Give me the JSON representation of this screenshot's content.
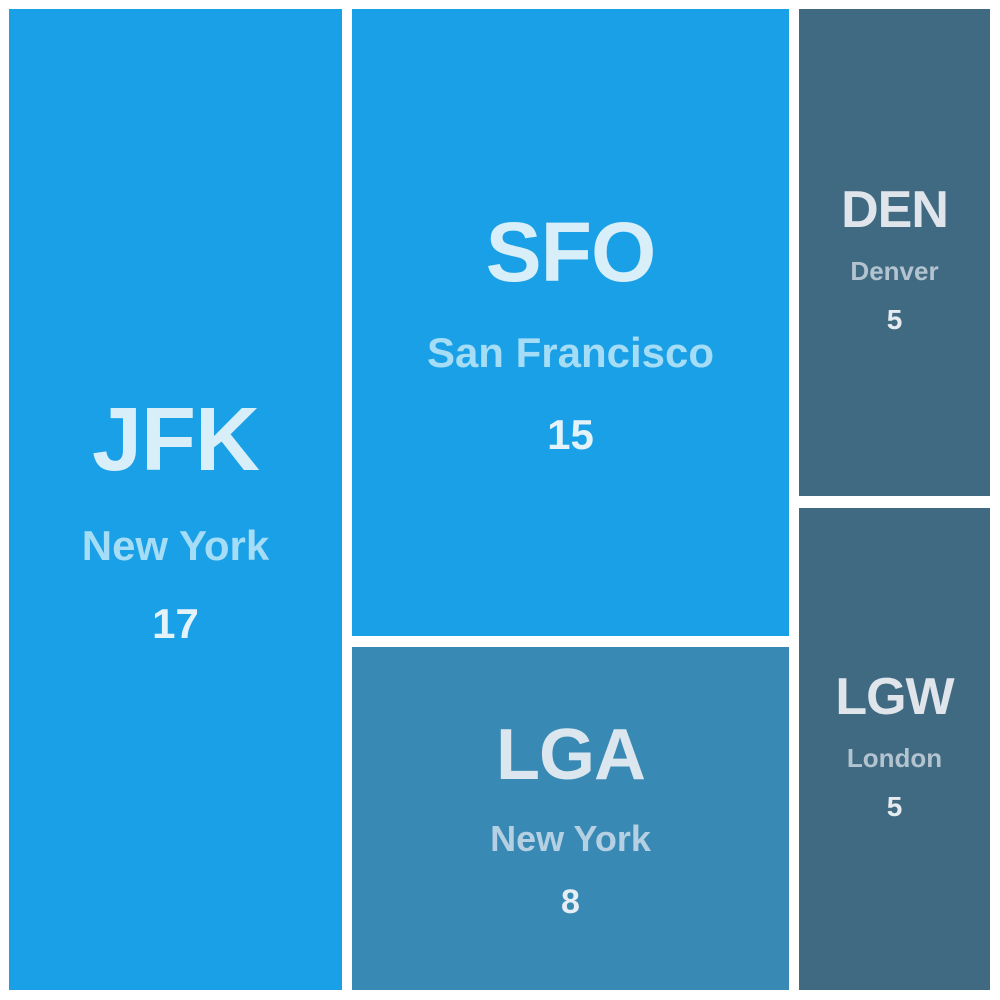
{
  "chart_data": {
    "type": "treemap",
    "items": [
      {
        "code": "JFK",
        "city": "New York",
        "value": 17,
        "fill": "#19a0e6",
        "code_color": "#d8eef8",
        "city_color": "#a5dcf6",
        "value_color": "#e4f3fa"
      },
      {
        "code": "SFO",
        "city": "San Francisco",
        "value": 15,
        "fill": "#19a0e6",
        "code_color": "#d8eef8",
        "city_color": "#a5dcf6",
        "value_color": "#e4f3fa"
      },
      {
        "code": "LGA",
        "city": "New York",
        "value": 8,
        "fill": "#3889b4",
        "code_color": "#dce6ee",
        "city_color": "#b5d0e2",
        "value_color": "#e6eef4"
      },
      {
        "code": "DEN",
        "city": "Denver",
        "value": 5,
        "fill": "#406a82",
        "code_color": "#dfe5ea",
        "city_color": "#b3c3cf",
        "value_color": "#e6ebef"
      },
      {
        "code": "LGW",
        "city": "London",
        "value": 5,
        "fill": "#406a82",
        "code_color": "#dfe5ea",
        "city_color": "#b3c3cf",
        "value_color": "#e6ebef"
      }
    ]
  }
}
